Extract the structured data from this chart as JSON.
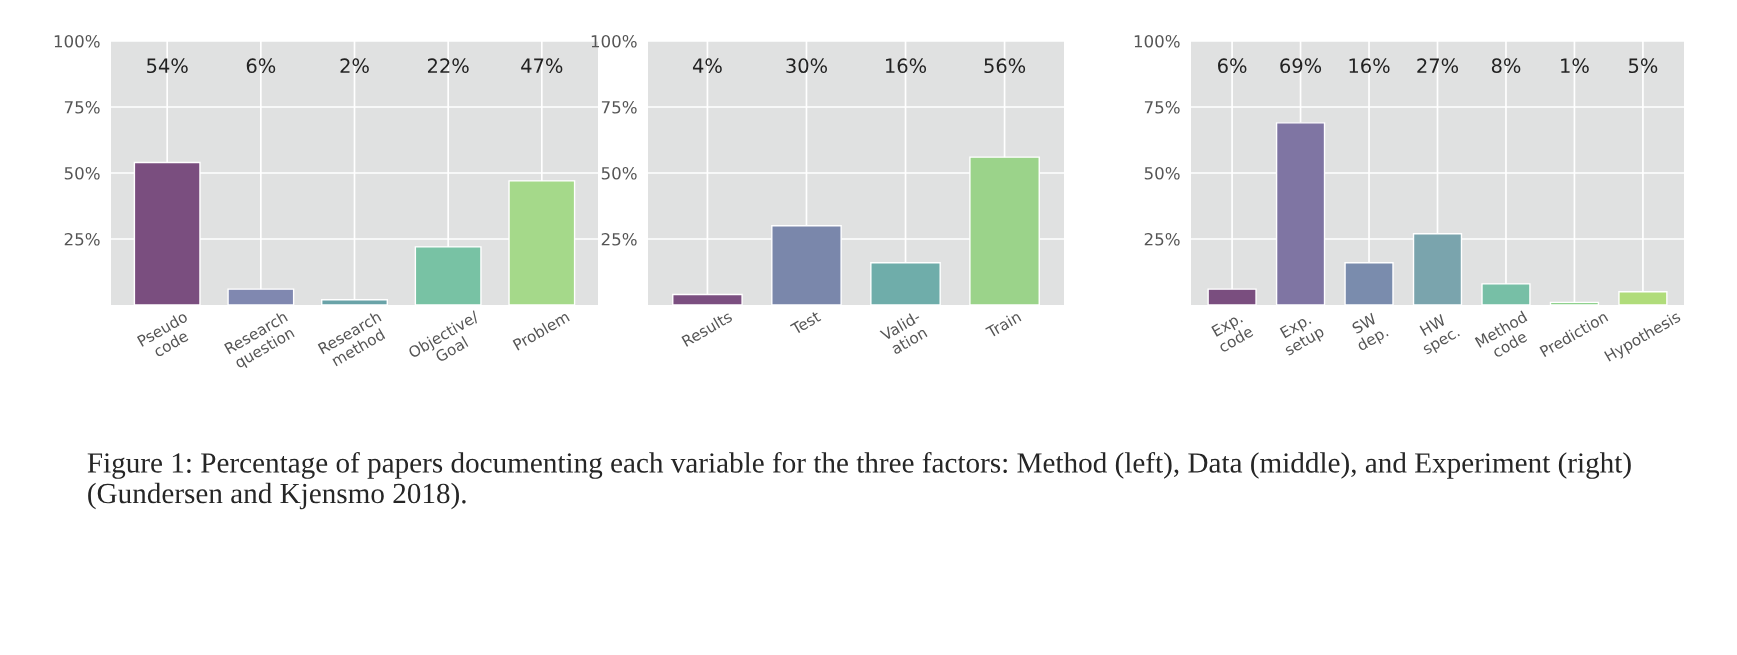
{
  "chart_data": [
    {
      "type": "bar",
      "categories": [
        "Pseudo\ncode",
        "Research\nquestion",
        "Research\nmethod",
        "Objective/\nGoal",
        "Problem"
      ],
      "values": [
        54,
        6,
        2,
        22,
        47
      ],
      "value_labels": [
        "54%",
        "6%",
        "2%",
        "22%",
        "47%"
      ],
      "colors": [
        "#7a4e7f",
        "#8088b0",
        "#6aa3a8",
        "#78c2a4",
        "#a5d98a"
      ],
      "ylim": [
        0,
        100
      ],
      "yticks": [
        {
          "value": 25,
          "label": "25%"
        },
        {
          "value": 50,
          "label": "50%"
        },
        {
          "value": 75,
          "label": "75%"
        },
        {
          "value": 100,
          "label": "100%"
        }
      ],
      "grid": true
    },
    {
      "type": "bar",
      "categories": [
        "Results",
        "Test",
        "Valid-\nation",
        "Train"
      ],
      "values": [
        4,
        30,
        16,
        56
      ],
      "value_labels": [
        "4%",
        "30%",
        "16%",
        "56%"
      ],
      "colors": [
        "#7b4f80",
        "#7a87ab",
        "#6fadaa",
        "#9bd38a"
      ],
      "ylim": [
        0,
        100
      ],
      "yticks": [
        {
          "value": 25,
          "label": "25%"
        },
        {
          "value": 50,
          "label": "50%"
        },
        {
          "value": 75,
          "label": "75%"
        },
        {
          "value": 100,
          "label": "100%"
        }
      ],
      "grid": true
    },
    {
      "type": "bar",
      "categories": [
        "Exp.\ncode",
        "Exp.\nsetup",
        "SW\ndep.",
        "HW\nspec.",
        "Method\ncode",
        "Prediction",
        "Hypothesis"
      ],
      "values": [
        6,
        69,
        16,
        27,
        8,
        1,
        5
      ],
      "value_labels": [
        "6%",
        "69%",
        "16%",
        "27%",
        "8%",
        "1%",
        "5%"
      ],
      "colors": [
        "#7a4e7f",
        "#7f75a3",
        "#7a8cad",
        "#7aa4ad",
        "#77bfa6",
        "#8fd18e",
        "#b0dc7a"
      ],
      "ylim": [
        0,
        100
      ],
      "yticks": [
        {
          "value": 25,
          "label": "25%"
        },
        {
          "value": 50,
          "label": "50%"
        },
        {
          "value": 75,
          "label": "75%"
        },
        {
          "value": 100,
          "label": "100%"
        }
      ],
      "grid": true,
      "annotations": [
        "Figure 1: Percentage of papers documenting each variable for the three factors: Method (left), Data (middle), and Experiment (right) (Gundersen and Kjensmo 2018)."
      ]
    }
  ]
}
